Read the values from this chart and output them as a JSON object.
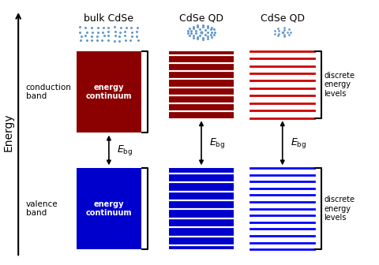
{
  "bg_color": "#ffffff",
  "title_col1": "bulk CdSe",
  "title_col2": "CdSe QD",
  "title_col3": "CdSe QD",
  "red_color": "#8B0000",
  "blue_color": "#0000CC",
  "red_line_color": "#CC0000",
  "blue_line_color": "#0000FF",
  "dot_color": "#6699CC"
}
